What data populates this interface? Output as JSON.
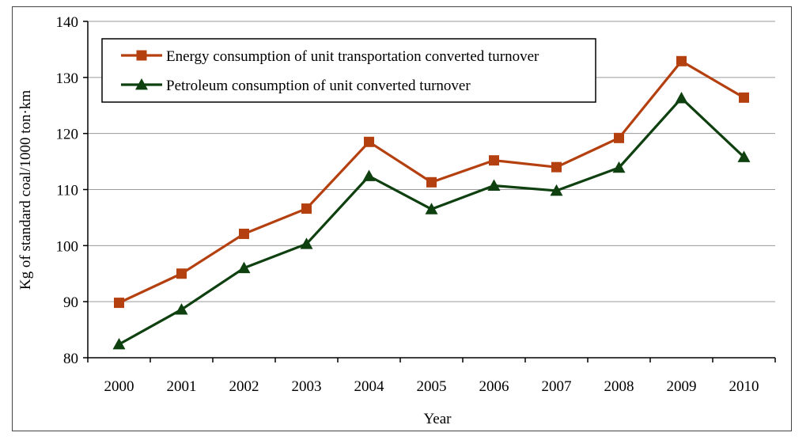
{
  "chart_data": {
    "type": "line",
    "title": "",
    "xlabel": "Year",
    "ylabel": "Kg of standard coal/1000 ton·km",
    "categories": [
      "2000",
      "2001",
      "2002",
      "2003",
      "2004",
      "2005",
      "2006",
      "2007",
      "2008",
      "2009",
      "2010"
    ],
    "ylim": [
      80,
      140
    ],
    "yticks": [
      80,
      90,
      100,
      110,
      120,
      130,
      140
    ],
    "grid": true,
    "legend_position": "top-left",
    "series": [
      {
        "name": "Energy consumption of unit transportation converted turnover",
        "marker": "square",
        "color": "#b5400f",
        "values": [
          89.8,
          95.0,
          102.1,
          106.6,
          118.5,
          111.3,
          115.2,
          114.0,
          119.2,
          132.9,
          126.4
        ]
      },
      {
        "name": "Petroleum consumption of unit converted turnover",
        "marker": "triangle",
        "color": "#0f4010",
        "values": [
          82.4,
          88.6,
          96.0,
          100.3,
          112.4,
          106.5,
          110.7,
          109.8,
          113.9,
          126.3,
          115.8
        ]
      }
    ]
  }
}
